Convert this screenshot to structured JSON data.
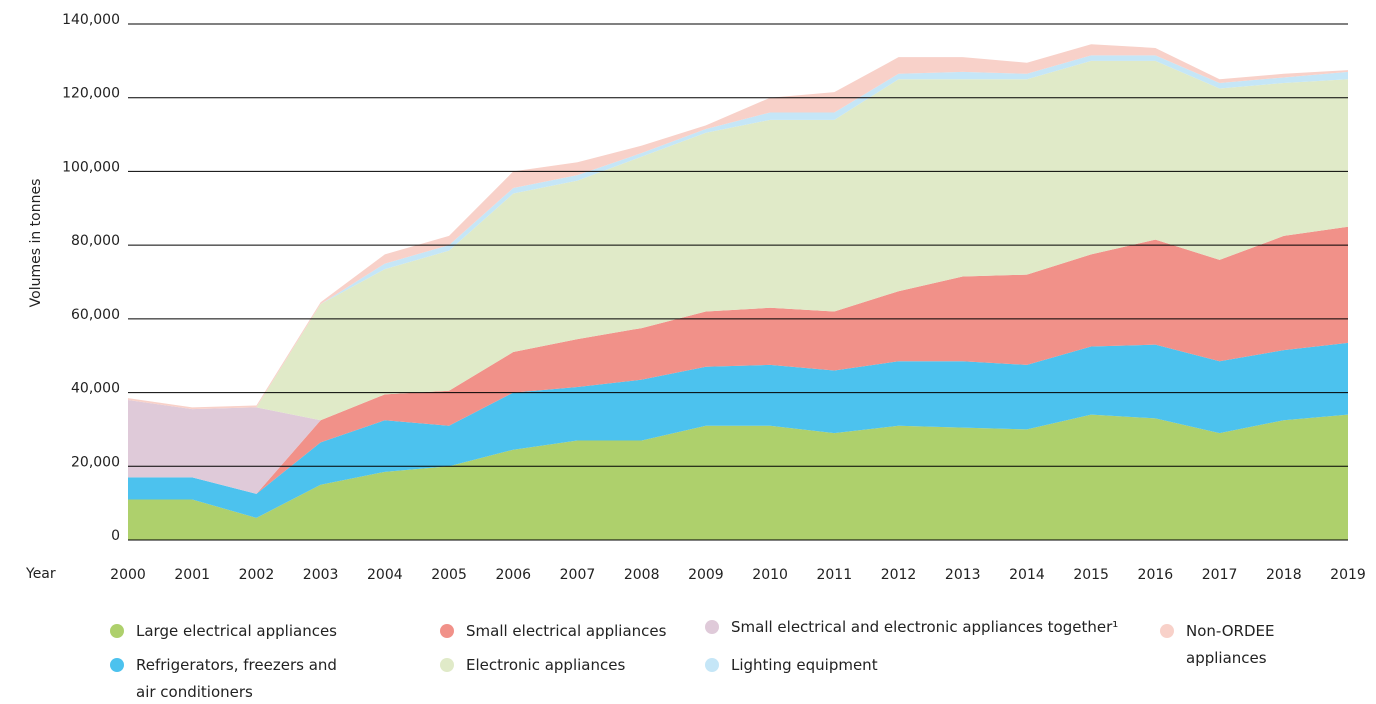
{
  "chart_data": {
    "type": "stacked-area",
    "y_label": "Volumes in tonnes",
    "x_label": "Year",
    "categories": [
      "2000",
      "2001",
      "2002",
      "2003",
      "2004",
      "2005",
      "2006",
      "2007",
      "2008",
      "2009",
      "2010",
      "2011",
      "2012",
      "2013",
      "2014",
      "2015",
      "2016",
      "2017",
      "2018",
      "2019"
    ],
    "ylim": [
      0,
      140000
    ],
    "yticks": [
      0,
      {
        "value": 20000,
        "label": "20,000"
      },
      {
        "value": 40000,
        "label": "40,000"
      },
      {
        "value": 60000,
        "label": "60,000"
      },
      {
        "value": 80000,
        "label": "80,000"
      },
      {
        "value": 100000,
        "label": "100,000"
      },
      {
        "value": 120000,
        "label": "120,000"
      },
      {
        "value": 140000,
        "label": "140,000"
      }
    ],
    "grid": true,
    "series": [
      {
        "name": "Large electrical appliances",
        "color": "#aed06c",
        "values": [
          11000,
          11000,
          6000,
          15000,
          18500,
          20000,
          24500,
          27000,
          27000,
          31000,
          31000,
          29000,
          31000,
          30500,
          30000,
          34000,
          33000,
          29000,
          32500,
          34000
        ]
      },
      {
        "name": "Refrigerators, freezers and air conditioners",
        "color": "#4cc2ee",
        "values": [
          6000,
          6000,
          6500,
          11500,
          14000,
          11000,
          15500,
          14500,
          16500,
          16000,
          16500,
          17000,
          17500,
          18000,
          17500,
          18500,
          20000,
          19500,
          19000,
          19500
        ]
      },
      {
        "name": "Small electrical appliances",
        "color": "#f19189",
        "values": [
          null,
          null,
          0,
          6000,
          7000,
          9500,
          11000,
          13000,
          14000,
          15000,
          15500,
          16000,
          19000,
          23000,
          24500,
          25000,
          28500,
          27500,
          31000,
          31500
        ]
      },
      {
        "name": "Small electrical and electronic appliances together¹",
        "color": "#dfcad9",
        "values": [
          21000,
          18500,
          23500,
          0,
          null,
          null,
          null,
          null,
          null,
          null,
          null,
          null,
          null,
          null,
          null,
          null,
          null,
          null,
          null,
          null
        ]
      },
      {
        "name": "Electronic appliances",
        "color": "#e0eac8",
        "values": [
          null,
          null,
          0,
          31500,
          34000,
          38000,
          43000,
          43000,
          46500,
          48500,
          51000,
          52000,
          57500,
          53500,
          53000,
          52500,
          48500,
          46500,
          41500,
          40000
        ]
      },
      {
        "name": "Lighting equipment",
        "color": "#c5e6f7",
        "values": [
          null,
          null,
          null,
          0,
          1500,
          1500,
          1500,
          1500,
          1000,
          1000,
          2000,
          2000,
          1500,
          2000,
          1500,
          1500,
          1500,
          1500,
          1500,
          2000
        ]
      },
      {
        "name": "Non-ORDEE appliances",
        "color": "#f8d1c9",
        "values": [
          500,
          500,
          500,
          500,
          2500,
          2500,
          4500,
          3500,
          2000,
          1000,
          4000,
          5500,
          4500,
          4000,
          3000,
          3000,
          2000,
          1000,
          1000,
          500
        ]
      }
    ]
  }
}
